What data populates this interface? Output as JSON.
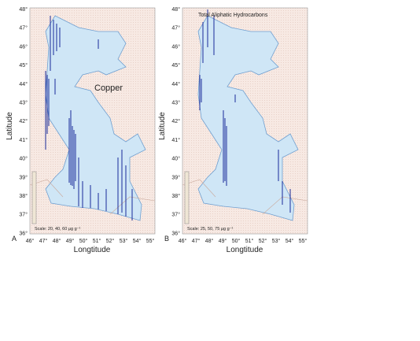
{
  "panels": [
    {
      "letter": "A",
      "label": "Copper",
      "scale": "Scale: 20, 40, 60 µg g⁻¹"
    },
    {
      "letter": "B",
      "label": "Total Aliphatic Hydrocarbons",
      "scale": "Scale: 25, 50, 75 µg g⁻¹"
    }
  ],
  "axes": {
    "y_label": "Latitude",
    "x_label": "Longtitude",
    "y_ticks": [
      "48°",
      "47°",
      "46°",
      "45°",
      "44°",
      "43°",
      "42°",
      "41°",
      "40°",
      "39°",
      "38°",
      "37°",
      "36°"
    ],
    "x_ticks": [
      "46°",
      "47°",
      "48°",
      "49°",
      "50°",
      "51°",
      "52°",
      "53°",
      "54°",
      "55°"
    ]
  }
}
